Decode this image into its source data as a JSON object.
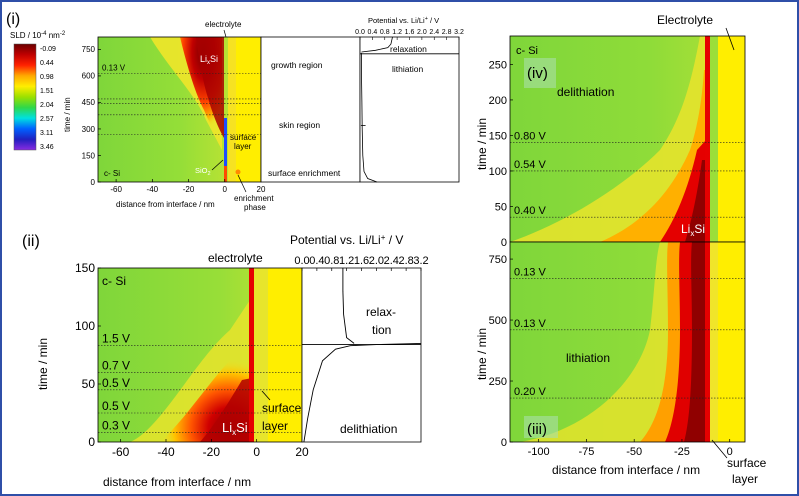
{
  "figure": {
    "border_color": "#2f4fa8",
    "label_i": "(i)",
    "label_ii": "(ii)",
    "label_iii": "(iii)",
    "label_iv": "(iv)"
  },
  "colorbar": {
    "title_main": "SLD / 10",
    "title_sup": "-4",
    "title_unit": " nm",
    "title_sup2": "-2",
    "ticks": [
      "-0.09",
      "0.44",
      "0.98",
      "1.51",
      "2.04",
      "2.57",
      "3.11",
      "3.46"
    ],
    "colors": [
      "#6b0000",
      "#c00000",
      "#ff2200",
      "#ffaa00",
      "#ffee00",
      "#9be000",
      "#2fd84a",
      "#00e0e0",
      "#0060ff",
      "#2020c0",
      "#8a2be2"
    ]
  },
  "chart_data": [
    {
      "id": "panel-i-map",
      "type": "heatmap",
      "xlabel": "distance from interface / nm",
      "ylabel": "time / min",
      "x_ticks": [
        -60,
        -40,
        -20,
        0,
        20
      ],
      "y_ticks": [
        0,
        150,
        300,
        450,
        600,
        750
      ],
      "xlim": [
        -70,
        20
      ],
      "ylim": [
        0,
        820
      ],
      "potential_lines": [
        {
          "t": 615,
          "label": "0.13 V"
        }
      ],
      "level_lines": [
        470,
        445,
        380,
        270
      ],
      "annotations": {
        "electrolyte": "electrolyte",
        "lixsi": "Li",
        "lixsi_sub": "x",
        "lixsi_tail": "Si",
        "surface_layer_1": "surface",
        "surface_layer_2": "layer",
        "sio2": "SiO",
        "sio2_sub": "2",
        "c_si": "c- Si",
        "enrichment_1": "enrichment",
        "enrichment_2": "phase"
      }
    },
    {
      "id": "panel-i-regions",
      "type": "table",
      "labels": [
        "growth region",
        "skin region",
        "surface enrichment"
      ]
    },
    {
      "id": "panel-i-potential",
      "type": "line",
      "xlabel": "Potential vs. Li/Li",
      "xlabel_sup": "+",
      "xlabel_unit": " / V",
      "x_ticks": [
        "0.0",
        "0.4",
        "0.8",
        "1.2",
        "1.6",
        "2.0",
        "2.4",
        "2.8",
        "3.2"
      ],
      "xlim": [
        0,
        3.2
      ],
      "ylim": [
        0,
        820
      ],
      "regions": [
        "relaxation",
        "lithiation"
      ],
      "curve": [
        [
          0.55,
          0
        ],
        [
          0.25,
          20
        ],
        [
          0.13,
          60
        ],
        [
          0.09,
          150
        ],
        [
          0.07,
          300
        ],
        [
          0.06,
          450
        ],
        [
          0.05,
          600
        ],
        [
          0.05,
          730
        ]
      ],
      "relax_curve": [
        [
          0.05,
          735
        ],
        [
          0.5,
          745
        ],
        [
          0.9,
          760
        ],
        [
          1.0,
          780
        ],
        [
          1.05,
          820
        ]
      ]
    },
    {
      "id": "panel-ii-map",
      "type": "heatmap",
      "xlabel": "distance from interface / nm",
      "ylabel": "time / min",
      "x_ticks": [
        -60,
        -40,
        -20,
        0,
        20
      ],
      "y_ticks": [
        0,
        50,
        100,
        150
      ],
      "xlim": [
        -70,
        20
      ],
      "ylim": [
        0,
        150
      ],
      "potential_lines": [
        {
          "t": 83,
          "label": "1.5 V"
        },
        {
          "t": 60,
          "label": "0.7 V"
        },
        {
          "t": 45,
          "label": "0.5 V"
        },
        {
          "t": 25,
          "label": "0.5 V"
        },
        {
          "t": 8,
          "label": "0.3 V"
        }
      ],
      "annotations": {
        "electrolyte": "electrolyte",
        "c_si": "c- Si",
        "lixsi": "Li",
        "lixsi_sub": "x",
        "lixsi_tail": "Si",
        "surface_1": "surface",
        "surface_2": "layer"
      }
    },
    {
      "id": "panel-ii-potential",
      "type": "line",
      "xlabel": "Potential vs. Li/Li",
      "xlabel_sup": "+",
      "xlabel_unit": " / V",
      "x_ticks": [
        "0.0",
        "0.4",
        "0.8",
        "1.2",
        "1.6",
        "2.0",
        "2.4",
        "2.8",
        "3.2"
      ],
      "xlim": [
        0,
        3.2
      ],
      "ylim": [
        0,
        150
      ],
      "regions": [
        "relaxation",
        "delithiation"
      ],
      "relax_label_1": "relax-",
      "relax_label_2": "tion",
      "curve": [
        [
          0.05,
          0
        ],
        [
          0.15,
          20
        ],
        [
          0.3,
          45
        ],
        [
          0.55,
          70
        ],
        [
          0.9,
          80
        ],
        [
          1.3,
          83
        ],
        [
          2.0,
          84
        ],
        [
          3.2,
          85
        ]
      ],
      "relax_curve": [
        [
          1.4,
          85
        ],
        [
          1.2,
          90
        ],
        [
          1.12,
          110
        ],
        [
          1.1,
          130
        ],
        [
          1.1,
          150
        ]
      ]
    },
    {
      "id": "panel-iv-map",
      "type": "heatmap",
      "xlabel": "",
      "ylabel": "time / min",
      "y_ticks": [
        0,
        50,
        100,
        150,
        200,
        250
      ],
      "ylim": [
        0,
        290
      ],
      "xlim": [
        -115,
        8
      ],
      "potential_lines": [
        {
          "t": 140,
          "label": "0.80 V"
        },
        {
          "t": 100,
          "label": "0.54 V"
        },
        {
          "t": 35,
          "label": "0.40 V"
        }
      ],
      "annotations": {
        "electrolyte": "Electrolyte",
        "c_si": "c- Si",
        "region": "delithiation",
        "lixsi": "Li",
        "lixsi_sub": "x",
        "lixsi_tail": "Si"
      }
    },
    {
      "id": "panel-iii-map",
      "type": "heatmap",
      "xlabel": "distance from interface / nm",
      "ylabel": "time / min",
      "x_ticks": [
        -100,
        -75,
        -50,
        -25,
        0
      ],
      "y_ticks": [
        0,
        250,
        500,
        750
      ],
      "ylim": [
        0,
        820
      ],
      "xlim": [
        -115,
        8
      ],
      "potential_lines": [
        {
          "t": 670,
          "label": "0.13 V"
        },
        {
          "t": 460,
          "label": "0.13 V"
        },
        {
          "t": 180,
          "label": "0.20 V"
        }
      ],
      "annotations": {
        "region": "lithiation",
        "surface_1": "surface",
        "surface_2": "layer"
      }
    }
  ]
}
